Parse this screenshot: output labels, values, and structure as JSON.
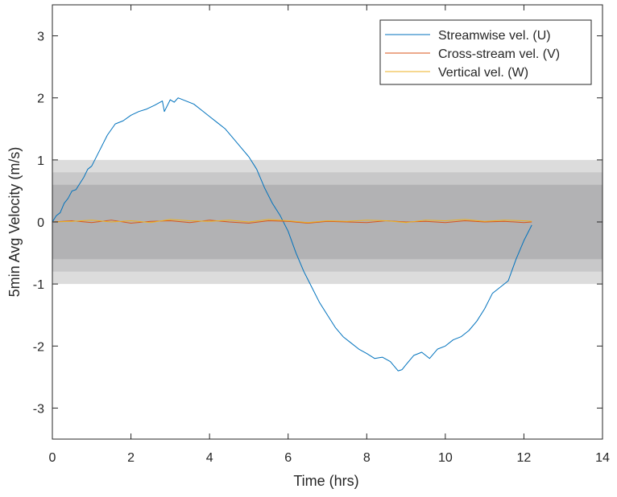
{
  "chart_data": {
    "type": "line",
    "title": "",
    "xlabel": "Time (hrs)",
    "ylabel": "5min Avg Velocity (m/s)",
    "xlim": [
      0,
      14
    ],
    "ylim": [
      -3.5,
      3.5
    ],
    "xticks": [
      0,
      2,
      4,
      6,
      8,
      10,
      12,
      14
    ],
    "yticks": [
      -3,
      -2,
      -1,
      0,
      1,
      2,
      3
    ],
    "grid": false,
    "legend_position": "top-right",
    "bands": [
      {
        "y0": -1.0,
        "y1": 1.0,
        "color": "#dcdcdc"
      },
      {
        "y0": -0.8,
        "y1": 0.8,
        "color": "#c8c8c9"
      },
      {
        "y0": -0.6,
        "y1": 0.6,
        "color": "#b2b2b4"
      }
    ],
    "series": [
      {
        "name": "Streamwise vel. (U)",
        "color": "#0072BD",
        "x": [
          0.0,
          0.1,
          0.2,
          0.3,
          0.4,
          0.5,
          0.6,
          0.7,
          0.8,
          0.9,
          1.0,
          1.2,
          1.4,
          1.6,
          1.8,
          2.0,
          2.2,
          2.4,
          2.6,
          2.8,
          2.85,
          3.0,
          3.1,
          3.2,
          3.4,
          3.6,
          3.8,
          4.0,
          4.2,
          4.4,
          4.6,
          4.8,
          5.0,
          5.2,
          5.4,
          5.6,
          5.8,
          6.0,
          6.2,
          6.4,
          6.6,
          6.8,
          7.0,
          7.2,
          7.4,
          7.6,
          7.8,
          8.0,
          8.2,
          8.4,
          8.6,
          8.8,
          8.9,
          9.0,
          9.2,
          9.4,
          9.6,
          9.8,
          10.0,
          10.2,
          10.4,
          10.6,
          10.8,
          11.0,
          11.2,
          11.4,
          11.6,
          11.8,
          12.0,
          12.2
        ],
        "y": [
          0.0,
          0.1,
          0.15,
          0.3,
          0.38,
          0.5,
          0.52,
          0.62,
          0.72,
          0.85,
          0.9,
          1.15,
          1.4,
          1.58,
          1.63,
          1.72,
          1.78,
          1.82,
          1.88,
          1.95,
          1.78,
          1.97,
          1.93,
          2.0,
          1.95,
          1.9,
          1.8,
          1.7,
          1.6,
          1.5,
          1.35,
          1.2,
          1.05,
          0.85,
          0.55,
          0.3,
          0.1,
          -0.15,
          -0.5,
          -0.8,
          -1.05,
          -1.3,
          -1.5,
          -1.7,
          -1.85,
          -1.95,
          -2.05,
          -2.12,
          -2.2,
          -2.18,
          -2.25,
          -2.4,
          -2.38,
          -2.3,
          -2.15,
          -2.1,
          -2.2,
          -2.05,
          -2.0,
          -1.9,
          -1.85,
          -1.75,
          -1.6,
          -1.4,
          -1.15,
          -1.05,
          -0.95,
          -0.6,
          -0.3,
          -0.05
        ]
      },
      {
        "name": "Cross-stream vel. (V)",
        "color": "#D95319",
        "x": [
          0.0,
          0.5,
          1.0,
          1.5,
          2.0,
          2.5,
          3.0,
          3.5,
          4.0,
          4.5,
          5.0,
          5.5,
          6.0,
          6.5,
          7.0,
          7.5,
          8.0,
          8.5,
          9.0,
          9.5,
          10.0,
          10.5,
          11.0,
          11.5,
          12.0,
          12.2
        ],
        "y": [
          0.0,
          0.02,
          -0.01,
          0.03,
          -0.02,
          0.01,
          0.02,
          -0.01,
          0.03,
          0.0,
          -0.02,
          0.02,
          0.01,
          -0.02,
          0.01,
          0.0,
          -0.01,
          0.02,
          0.0,
          0.01,
          -0.01,
          0.02,
          0.0,
          0.01,
          -0.01,
          0.0
        ]
      },
      {
        "name": "Vertical vel. (W)",
        "color": "#EDB120",
        "x": [
          0.0,
          0.5,
          1.0,
          1.5,
          2.0,
          2.5,
          3.0,
          3.5,
          4.0,
          4.5,
          5.0,
          5.5,
          6.0,
          6.5,
          7.0,
          7.5,
          8.0,
          8.5,
          9.0,
          9.5,
          10.0,
          10.5,
          11.0,
          11.5,
          12.0,
          12.2
        ],
        "y": [
          0.0,
          0.01,
          0.03,
          0.0,
          0.02,
          -0.01,
          0.04,
          0.02,
          0.01,
          0.03,
          0.0,
          0.04,
          0.02,
          -0.01,
          0.02,
          0.01,
          0.03,
          0.02,
          -0.01,
          0.03,
          0.02,
          0.04,
          0.01,
          0.03,
          0.02,
          0.01
        ]
      }
    ]
  }
}
